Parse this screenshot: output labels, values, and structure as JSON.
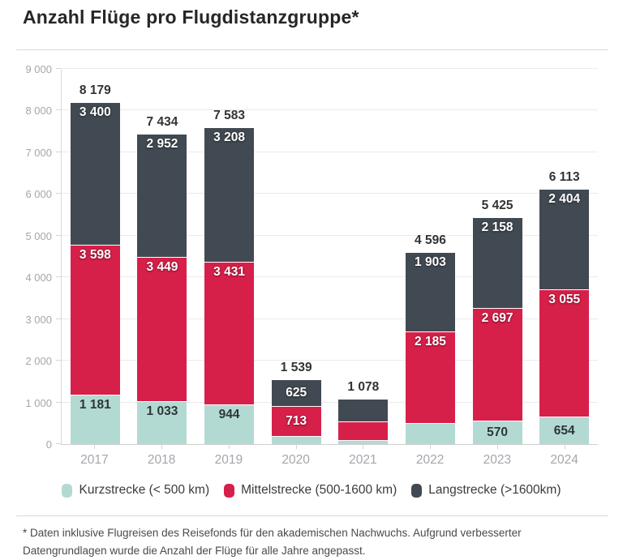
{
  "header": {
    "title": "Anzahl Flüge pro Flugdistanzgruppe*"
  },
  "chart_data": {
    "type": "bar",
    "stacked": true,
    "title": "Anzahl Flüge pro Flugdistanzgruppe*",
    "xlabel": "",
    "ylabel": "",
    "ylim": [
      0,
      9000
    ],
    "ytick_step": 1000,
    "ytick_labels": [
      "0",
      "1 000",
      "2 000",
      "3 000",
      "4 000",
      "5 000",
      "6 000",
      "7 000",
      "8 000",
      "9 000"
    ],
    "grid": "horizontal",
    "legend_position": "bottom",
    "categories": [
      "2017",
      "2018",
      "2019",
      "2020",
      "2021",
      "2022",
      "2023",
      "2024"
    ],
    "series": [
      {
        "name": "Kurzstrecke (< 500 km)",
        "color": "#b2dad3",
        "label_color": "#2f3438",
        "values": [
          1181,
          1033,
          944,
          201,
          100,
          508,
          570,
          654
        ],
        "labels": [
          "1 181",
          "1 033",
          "944",
          "",
          "",
          "",
          "570",
          "654"
        ]
      },
      {
        "name": "Mittelstrecke (500-1600 km)",
        "color": "#d6204a",
        "label_color": "#ffffff",
        "values": [
          3598,
          3449,
          3431,
          713,
          450,
          2185,
          2697,
          3055
        ],
        "labels": [
          "3 598",
          "3 449",
          "3 431",
          "713",
          "",
          "2 185",
          "2 697",
          "3 055"
        ]
      },
      {
        "name": "Langstrecke (>1600km)",
        "color": "#414a52",
        "label_color": "#ffffff",
        "values": [
          3400,
          2952,
          3208,
          625,
          528,
          1903,
          2158,
          2404
        ],
        "labels": [
          "3 400",
          "2 952",
          "3 208",
          "625",
          "",
          "1 903",
          "2 158",
          "2 404"
        ]
      }
    ],
    "totals": [
      8179,
      7434,
      7583,
      1539,
      1078,
      4596,
      5425,
      6113
    ],
    "totals_display": [
      "8 179",
      "7 434",
      "7 583",
      "1 539",
      "1 078",
      "4 596",
      "5 425",
      "6 113"
    ]
  },
  "footer": {
    "line1": "* Daten inklusive Flugreisen des Reisefonds für den akademischen Nachwuchs. Aufgrund verbesserter",
    "line2": "Datengrundlagen wurde die Anzahl der Flüge für alle Jahre angepasst."
  }
}
